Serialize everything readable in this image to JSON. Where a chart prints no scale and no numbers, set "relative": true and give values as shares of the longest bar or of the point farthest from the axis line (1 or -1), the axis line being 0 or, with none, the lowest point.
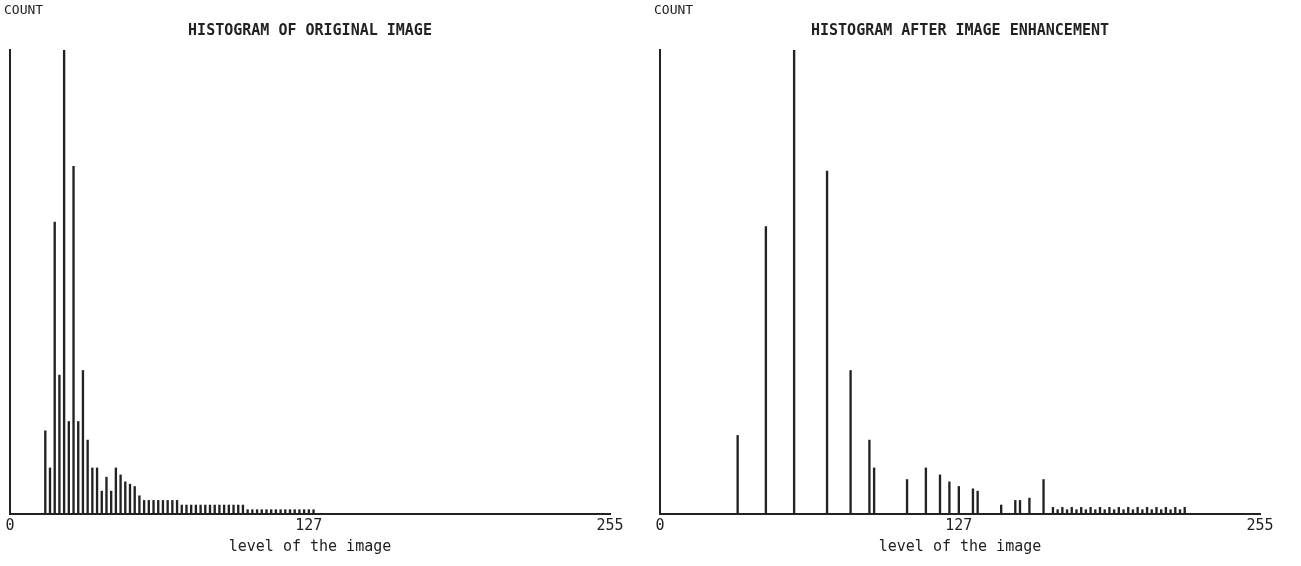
{
  "chart_data": [
    {
      "type": "bar",
      "title": "HISTOGRAM OF ORIGINAL IMAGE",
      "ylabel": "COUNT",
      "xlabel": "level of the image",
      "relative": true,
      "color": "#222222",
      "legend": false,
      "grid": false,
      "xlim": [
        0,
        255
      ],
      "xticks": [
        0,
        127,
        255
      ],
      "x": [
        15,
        17,
        19,
        21,
        23,
        25,
        27,
        29,
        31,
        33,
        35,
        37,
        39,
        41,
        43,
        45,
        47,
        49,
        51,
        53,
        55,
        57,
        59,
        61,
        63,
        65,
        67,
        69,
        71,
        73,
        75,
        77,
        79,
        81,
        83,
        85,
        87,
        89,
        91,
        93,
        95,
        97,
        99,
        101,
        103,
        105,
        107,
        109,
        111,
        113,
        115,
        117,
        119,
        121,
        123,
        125,
        127,
        129
      ],
      "values": [
        0.18,
        0.1,
        0.63,
        0.3,
        1,
        0.2,
        0.75,
        0.2,
        0.31,
        0.16,
        0.1,
        0.1,
        0.05,
        0.08,
        0.05,
        0.1,
        0.085,
        0.07,
        0.065,
        0.06,
        0.04,
        0.03,
        0.03,
        0.03,
        0.03,
        0.03,
        0.03,
        0.03,
        0.03,
        0.02,
        0.02,
        0.02,
        0.02,
        0.02,
        0.02,
        0.02,
        0.02,
        0.02,
        0.02,
        0.02,
        0.02,
        0.02,
        0.02,
        0.01,
        0.01,
        0.01,
        0.01,
        0.01,
        0.01,
        0.01,
        0.01,
        0.01,
        0.01,
        0.01,
        0.01,
        0.01,
        0.01,
        0.01
      ]
    },
    {
      "type": "bar",
      "title": "HISTOGRAM AFTER IMAGE ENHANCEMENT",
      "ylabel": "COUNT",
      "xlabel": "level of the image",
      "relative": true,
      "color": "#222222",
      "legend": false,
      "grid": false,
      "xlim": [
        0,
        255
      ],
      "xticks": [
        0,
        127,
        255
      ],
      "x": [
        33,
        45,
        57,
        71,
        81,
        89,
        91,
        105,
        113,
        119,
        123,
        127,
        133,
        135,
        145,
        151,
        153,
        157,
        163,
        167,
        169,
        171,
        173,
        175,
        177,
        179,
        181,
        183,
        185,
        187,
        189,
        191,
        193,
        195,
        197,
        199,
        201,
        203,
        205,
        207,
        209,
        211,
        213,
        215,
        217,
        219,
        221,
        223
      ],
      "values": [
        0.17,
        0.62,
        1,
        0.74,
        0.31,
        0.16,
        0.1,
        0.075,
        0.1,
        0.085,
        0.07,
        0.06,
        0.055,
        0.05,
        0.02,
        0.03,
        0.03,
        0.035,
        0.075,
        0.015,
        0.01,
        0.015,
        0.01,
        0.015,
        0.01,
        0.015,
        0.01,
        0.015,
        0.01,
        0.015,
        0.01,
        0.015,
        0.01,
        0.015,
        0.01,
        0.015,
        0.01,
        0.015,
        0.01,
        0.015,
        0.01,
        0.015,
        0.01,
        0.015,
        0.01,
        0.015,
        0.01,
        0.015
      ]
    }
  ]
}
